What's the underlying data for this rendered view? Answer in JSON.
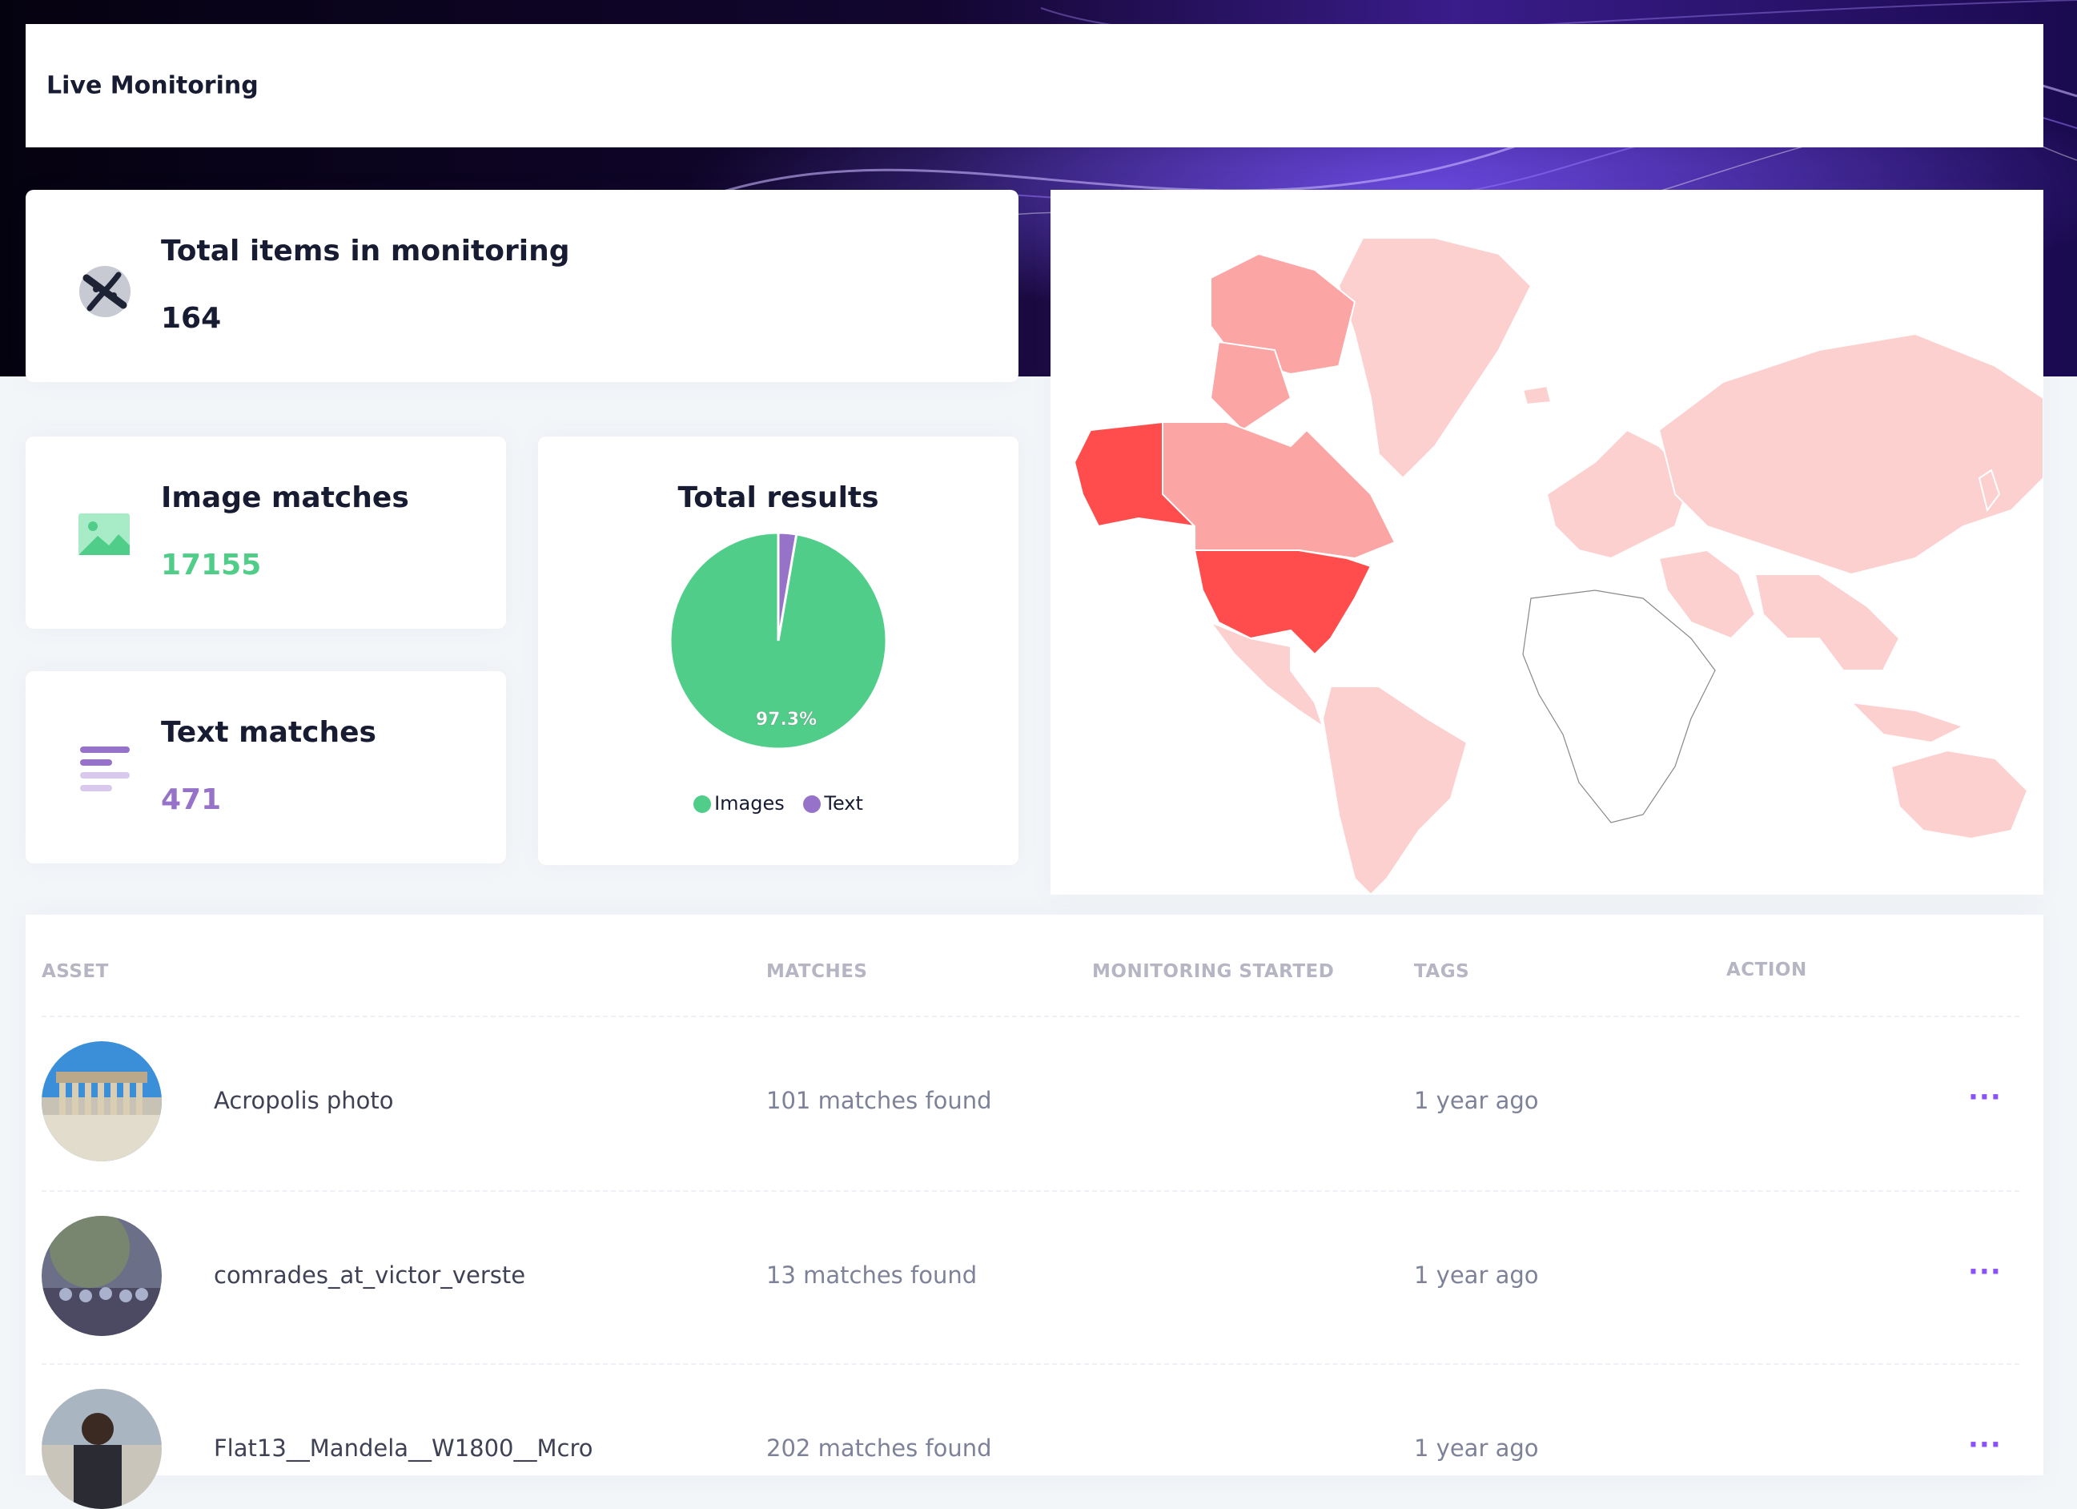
{
  "header": {
    "title": "Live Monitoring"
  },
  "stats": {
    "total_items": {
      "label": "Total items in monitoring",
      "value": "164",
      "icon": "monitoring-icon"
    },
    "image_matches": {
      "label": "Image matches",
      "value": "17155",
      "icon": "image-icon",
      "color": "#50cd89"
    },
    "text_matches": {
      "label": "Text matches",
      "value": "471",
      "icon": "text-lines-icon",
      "color": "#9672c8"
    }
  },
  "chart_data": {
    "type": "pie",
    "title": "Total results",
    "labels": [
      "Images",
      "Text"
    ],
    "values": [
      97.3,
      2.7
    ],
    "colors": [
      "#50cd89",
      "#9672c8"
    ],
    "data_labels": [
      "97.3%",
      ""
    ],
    "legend_position": "bottom"
  },
  "map": {
    "type": "world-choropleth",
    "highlighted": [
      {
        "region": "United States",
        "level": "highest",
        "color": "#ff4d4d"
      },
      {
        "region": "Alaska",
        "level": "highest",
        "color": "#ff4d4d"
      },
      {
        "region": "Canada",
        "level": "medium",
        "color": "#fca5a5"
      },
      {
        "region": "Eurasia / South America / Australia / Greenland",
        "level": "low",
        "color": "#fdd0d0"
      }
    ]
  },
  "table": {
    "columns": [
      "ASSET",
      "MATCHES",
      "MONITORING STARTED",
      "TAGS",
      "ACTION"
    ],
    "rows": [
      {
        "asset": "Acropolis photo",
        "matches": "101 matches found",
        "started": "1 year ago",
        "action": "···"
      },
      {
        "asset": "comrades_at_victor_verste",
        "matches": "13 matches found",
        "started": "1 year ago",
        "action": "···"
      },
      {
        "asset": "Flat13__Mandela__W1800__Mcro",
        "matches": "202 matches found",
        "started": "1 year ago",
        "action": "···"
      }
    ]
  }
}
